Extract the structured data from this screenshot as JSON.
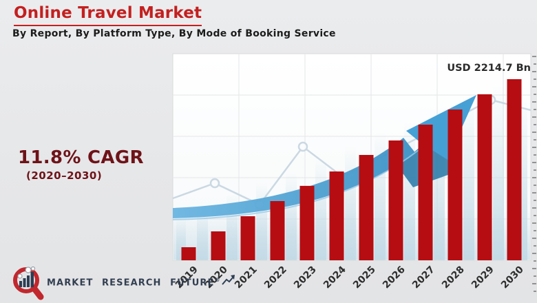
{
  "header": {
    "title": "Online Travel Market",
    "subtitle": "By Report, By Platform Type, By Mode of Booking Service"
  },
  "cagr": {
    "value": "11.8% CAGR",
    "period": "(2020–2030)"
  },
  "chart_data": {
    "type": "bar",
    "title": "Online Travel Market",
    "categories": [
      "2019",
      "2020",
      "2021",
      "2022",
      "2023",
      "2024",
      "2025",
      "2026",
      "2027",
      "2028",
      "2029",
      "2030"
    ],
    "values": [
      160,
      354,
      539,
      724,
      910,
      1086,
      1288,
      1465,
      1659,
      1844,
      2030,
      2214.7
    ],
    "unit": "USD Bn",
    "annotation": "USD 2214.7 Bn",
    "xlabel": "",
    "ylabel": "",
    "ylim": [
      0,
      2400
    ],
    "grid": true,
    "legend": false
  },
  "logo": {
    "text": "MARKET RESEARCH FUTURE",
    "registered": "®"
  },
  "colors": {
    "bar": "#b60d12",
    "title": "#c3201f",
    "cagr": "#6e1318",
    "subtitle": "#1c1c1c",
    "annotation": "#2a2a2a",
    "axis_label": "#2e2e2e",
    "arrow": "#45a0d6",
    "arrow_dark": "#2f7dab",
    "watermark": "#c3dae6",
    "logo_red": "#c1272d",
    "logo_navy": "#2c3e54",
    "background": "#e8e9ea"
  }
}
